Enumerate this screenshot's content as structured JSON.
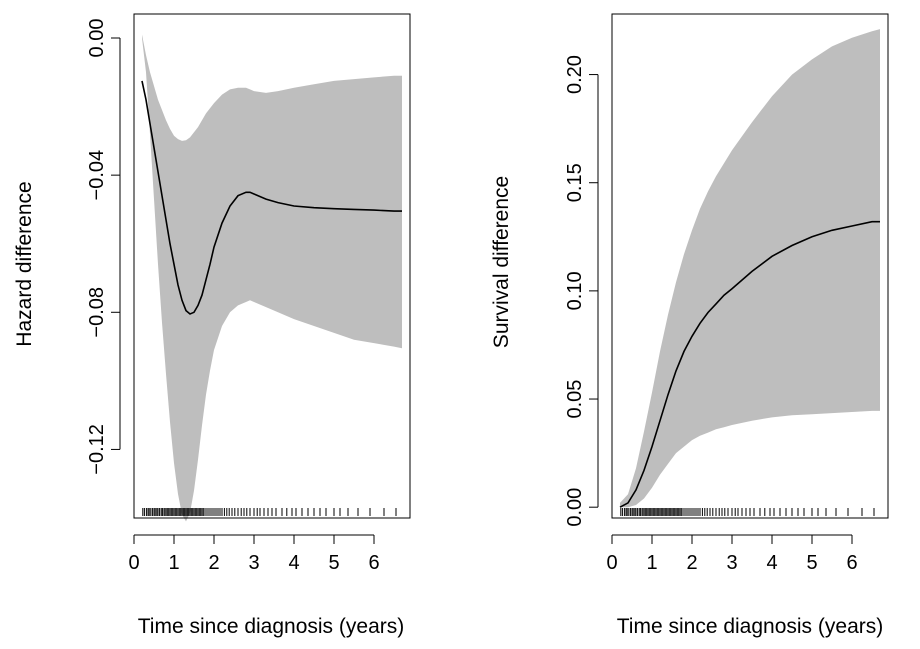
{
  "chart_data": [
    {
      "type": "line",
      "xlabel": "Time since diagnosis (years)",
      "ylabel": "Hazard difference",
      "xlim": [
        0,
        6.9
      ],
      "ylim": [
        -0.14,
        0.007
      ],
      "xticks": [
        0,
        1,
        2,
        3,
        4,
        5,
        6
      ],
      "yticks": [
        -0.12,
        -0.08,
        -0.04,
        0.0
      ],
      "ytick_labels": [
        "−0.12",
        "−0.08",
        "−0.04",
        "0.00"
      ],
      "grid": false,
      "band_color": "#bebebe",
      "line_color": "#000000",
      "x": [
        0.2,
        0.3,
        0.4,
        0.5,
        0.6,
        0.7,
        0.8,
        0.9,
        1.0,
        1.1,
        1.2,
        1.3,
        1.4,
        1.5,
        1.6,
        1.7,
        1.8,
        1.9,
        2.0,
        2.2,
        2.4,
        2.6,
        2.8,
        2.9,
        3.0,
        3.3,
        3.6,
        4.0,
        4.5,
        5.0,
        5.5,
        6.0,
        6.5,
        6.7
      ],
      "series": [
        {
          "role": "estimate",
          "values": [
            -0.0125,
            -0.018,
            -0.025,
            -0.032,
            -0.039,
            -0.046,
            -0.053,
            -0.06,
            -0.066,
            -0.072,
            -0.0765,
            -0.0795,
            -0.0805,
            -0.08,
            -0.078,
            -0.075,
            -0.0705,
            -0.066,
            -0.061,
            -0.054,
            -0.049,
            -0.046,
            -0.045,
            -0.045,
            -0.0455,
            -0.047,
            -0.048,
            -0.049,
            -0.0495,
            -0.0498,
            -0.05,
            -0.0502,
            -0.0505,
            -0.0505
          ]
        },
        {
          "role": "lower",
          "values": [
            0.0,
            -0.01,
            -0.028,
            -0.047,
            -0.066,
            -0.083,
            -0.098,
            -0.112,
            -0.124,
            -0.133,
            -0.139,
            -0.141,
            -0.1385,
            -0.132,
            -0.123,
            -0.113,
            -0.104,
            -0.097,
            -0.091,
            -0.084,
            -0.08,
            -0.078,
            -0.077,
            -0.0765,
            -0.077,
            -0.0785,
            -0.08,
            -0.082,
            -0.084,
            -0.086,
            -0.088,
            -0.089,
            -0.09,
            -0.0905
          ]
        },
        {
          "role": "upper",
          "values": [
            0.001,
            -0.005,
            -0.01,
            -0.014,
            -0.018,
            -0.021,
            -0.024,
            -0.0265,
            -0.0285,
            -0.0295,
            -0.03,
            -0.0298,
            -0.029,
            -0.0275,
            -0.026,
            -0.024,
            -0.022,
            -0.0205,
            -0.019,
            -0.0165,
            -0.015,
            -0.0145,
            -0.0145,
            -0.015,
            -0.0155,
            -0.016,
            -0.0155,
            -0.0145,
            -0.0135,
            -0.0125,
            -0.012,
            -0.0115,
            -0.011,
            -0.011
          ]
        }
      ],
      "rug": [
        0.22,
        0.26,
        0.31,
        0.35,
        0.38,
        0.42,
        0.46,
        0.5,
        0.53,
        0.57,
        0.6,
        0.64,
        0.68,
        0.71,
        0.75,
        0.78,
        0.82,
        0.85,
        0.88,
        0.92,
        0.95,
        0.98,
        1.02,
        1.05,
        1.08,
        1.12,
        1.15,
        1.18,
        1.22,
        1.25,
        1.28,
        1.32,
        1.35,
        1.38,
        1.42,
        1.45,
        1.48,
        1.52,
        1.55,
        1.58,
        1.62,
        1.65,
        1.68,
        1.72,
        1.75,
        1.8,
        1.85,
        1.9,
        1.95,
        2.0,
        2.05,
        2.1,
        2.15,
        2.2,
        2.26,
        2.32,
        2.38,
        2.45,
        2.52,
        2.6,
        2.68,
        2.75,
        2.82,
        2.9,
        3.0,
        3.08,
        3.15,
        3.25,
        3.35,
        3.45,
        3.55,
        3.7,
        3.82,
        3.95,
        4.05,
        4.2,
        4.35,
        4.5,
        4.65,
        4.8,
        5.0,
        5.15,
        5.35,
        5.6,
        5.9,
        6.25,
        6.55
      ]
    },
    {
      "type": "line",
      "xlabel": "Time since diagnosis (years)",
      "ylabel": "Survival difference",
      "xlim": [
        0,
        6.9
      ],
      "ylim": [
        -0.005,
        0.228
      ],
      "xticks": [
        0,
        1,
        2,
        3,
        4,
        5,
        6
      ],
      "yticks": [
        0.0,
        0.05,
        0.1,
        0.15,
        0.2
      ],
      "ytick_labels": [
        "0.00",
        "0.05",
        "0.10",
        "0.15",
        "0.20"
      ],
      "grid": false,
      "band_color": "#bebebe",
      "line_color": "#000000",
      "x": [
        0.2,
        0.4,
        0.6,
        0.8,
        1.0,
        1.2,
        1.4,
        1.6,
        1.8,
        2.0,
        2.2,
        2.4,
        2.6,
        2.8,
        3.0,
        3.5,
        4.0,
        4.5,
        5.0,
        5.5,
        6.0,
        6.5,
        6.7
      ],
      "series": [
        {
          "role": "estimate",
          "values": [
            0.0,
            0.002,
            0.008,
            0.017,
            0.028,
            0.04,
            0.052,
            0.063,
            0.072,
            0.079,
            0.085,
            0.09,
            0.094,
            0.098,
            0.101,
            0.109,
            0.116,
            0.121,
            0.125,
            0.128,
            0.13,
            0.132,
            0.132
          ]
        },
        {
          "role": "lower",
          "values": [
            0.0,
            0.0,
            0.001,
            0.004,
            0.009,
            0.015,
            0.02,
            0.025,
            0.028,
            0.031,
            0.033,
            0.0345,
            0.036,
            0.037,
            0.038,
            0.04,
            0.0415,
            0.0425,
            0.043,
            0.0435,
            0.044,
            0.0445,
            0.0445
          ]
        },
        {
          "role": "upper",
          "values": [
            0.002,
            0.006,
            0.018,
            0.035,
            0.053,
            0.072,
            0.089,
            0.104,
            0.117,
            0.128,
            0.138,
            0.146,
            0.153,
            0.159,
            0.165,
            0.178,
            0.19,
            0.2,
            0.207,
            0.213,
            0.217,
            0.22,
            0.221
          ]
        }
      ],
      "rug": [
        0.22,
        0.26,
        0.31,
        0.35,
        0.38,
        0.42,
        0.46,
        0.5,
        0.53,
        0.57,
        0.6,
        0.64,
        0.68,
        0.71,
        0.75,
        0.78,
        0.82,
        0.85,
        0.88,
        0.92,
        0.95,
        0.98,
        1.02,
        1.05,
        1.08,
        1.12,
        1.15,
        1.18,
        1.22,
        1.25,
        1.28,
        1.32,
        1.35,
        1.38,
        1.42,
        1.45,
        1.48,
        1.52,
        1.55,
        1.58,
        1.62,
        1.65,
        1.68,
        1.72,
        1.75,
        1.8,
        1.85,
        1.9,
        1.95,
        2.0,
        2.05,
        2.1,
        2.15,
        2.2,
        2.26,
        2.32,
        2.38,
        2.45,
        2.52,
        2.6,
        2.68,
        2.75,
        2.82,
        2.9,
        3.0,
        3.08,
        3.15,
        3.25,
        3.35,
        3.45,
        3.55,
        3.7,
        3.82,
        3.95,
        4.05,
        4.2,
        4.35,
        4.5,
        4.65,
        4.8,
        5.0,
        5.15,
        5.35,
        5.6,
        5.9,
        6.25,
        6.55
      ]
    }
  ]
}
